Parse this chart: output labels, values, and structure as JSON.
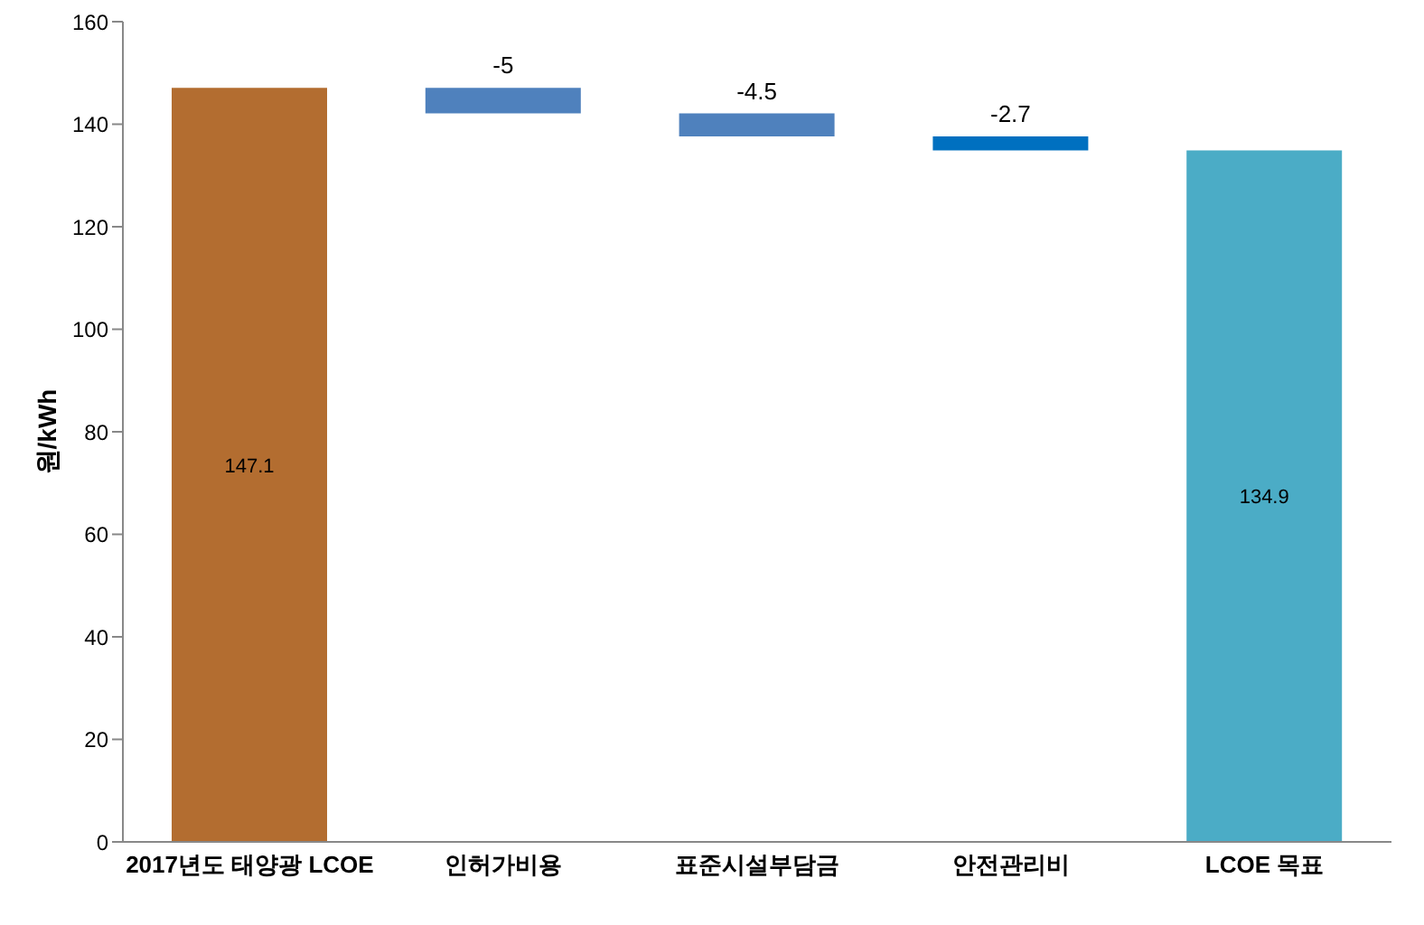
{
  "chart_data": {
    "type": "bar",
    "ylabel": "원/kWh",
    "categories": [
      "2017년도 태양광 LCOE",
      "인허가비용",
      "표준시설부담금",
      "안전관리비",
      "LCOE 목표"
    ],
    "values": [
      147.1,
      -5,
      -4.5,
      -2.7,
      134.9
    ],
    "base": [
      0,
      147.1,
      142.1,
      137.6,
      0
    ],
    "colors": [
      "#b36d30",
      "#4f81bd",
      "#4f81bd",
      "#0070c0",
      "#4bacc6"
    ],
    "ylim": [
      0,
      160
    ],
    "yticks": [
      0,
      20,
      40,
      60,
      80,
      100,
      120,
      140,
      160
    ],
    "grid": false,
    "data_labels": true
  }
}
